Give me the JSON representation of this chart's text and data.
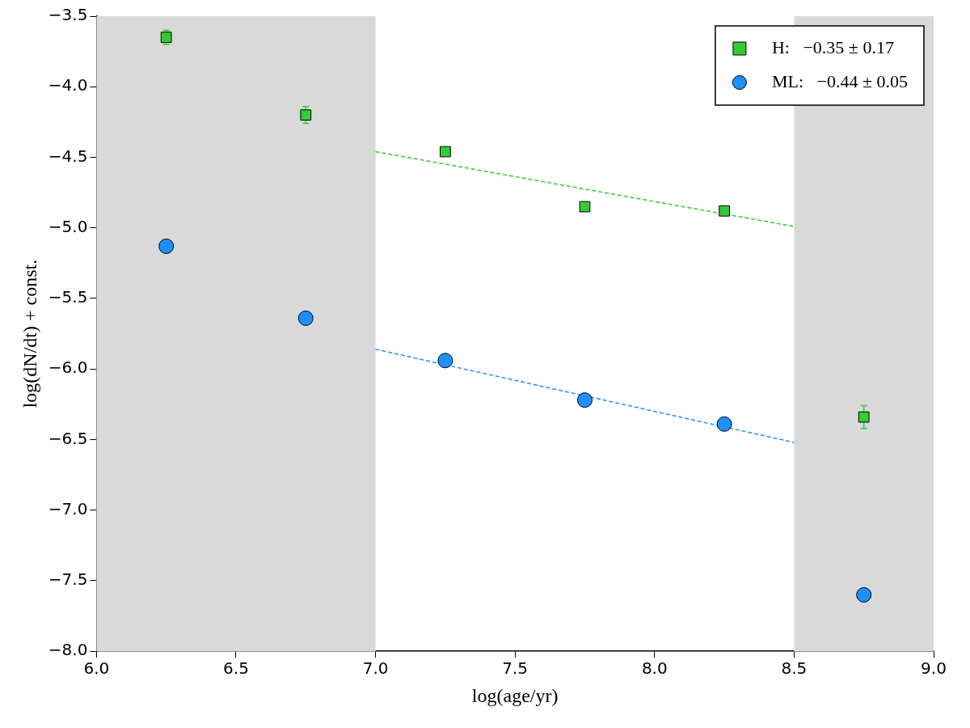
{
  "chart_data": {
    "type": "scatter",
    "xlabel": "log(age/yr)",
    "ylabel": "log(dN/dt) + const.",
    "xlim": [
      6.0,
      9.0
    ],
    "xticks": [
      {
        "value": 6,
        "label": "6.0"
      },
      {
        "value": 6.5,
        "label": "6.5"
      },
      {
        "value": 7,
        "label": "7.0"
      },
      {
        "value": 7.5,
        "label": "7.5"
      },
      {
        "value": 8,
        "label": "8.0"
      },
      {
        "value": 8.5,
        "label": "8.5"
      },
      {
        "value": 9,
        "label": "9.0"
      }
    ],
    "ylim": [
      -8.0,
      -3.5
    ],
    "yticks": [
      {
        "value": -8,
        "label": "−8.0"
      },
      {
        "value": -7.5,
        "label": "−7.5"
      },
      {
        "value": -7,
        "label": "−7.0"
      },
      {
        "value": -6.5,
        "label": "−6.5"
      },
      {
        "value": -6,
        "label": "−6.0"
      },
      {
        "value": -5.5,
        "label": "−5.5"
      },
      {
        "value": -5,
        "label": "−5.0"
      },
      {
        "value": -4.5,
        "label": "−4.5"
      },
      {
        "value": -4,
        "label": "−4.0"
      },
      {
        "value": -3.5,
        "label": "−3.5"
      }
    ],
    "grid": false,
    "legend": "top right",
    "bands": [
      {
        "axis": "x",
        "from": 6.0,
        "to": 7.0,
        "color": "#d9d9d9"
      },
      {
        "axis": "x",
        "from": 8.5,
        "to": 9.0,
        "color": "#d9d9d9"
      }
    ],
    "series": [
      {
        "name": "H:   −0.35 ± 0.17",
        "marker": "square",
        "color": "#33cc33",
        "x": [
          6.25,
          6.75,
          7.25,
          7.75,
          8.25,
          8.75
        ],
        "values": [
          -3.65,
          -4.2,
          -4.46,
          -4.85,
          -4.88,
          -6.34
        ],
        "errors": [
          0.05,
          0.06,
          null,
          null,
          null,
          0.08
        ]
      },
      {
        "name": "ML:   −0.44 ± 0.05",
        "marker": "circle",
        "color": "#1e90ff",
        "x": [
          6.25,
          6.75,
          7.25,
          7.75,
          8.25,
          8.75
        ],
        "values": [
          -5.13,
          -5.64,
          -5.94,
          -6.22,
          -6.39,
          -7.6
        ]
      },
      {
        "type": "line",
        "line_style": "dashed",
        "marker": "none",
        "color": "#33cc33",
        "x": [
          7.0,
          8.5
        ],
        "values": [
          -4.46,
          -4.99
        ]
      },
      {
        "type": "line",
        "line_style": "dashed",
        "marker": "none",
        "color": "#1e90ff",
        "x": [
          7.0,
          8.5
        ],
        "values": [
          -5.86,
          -6.52
        ]
      }
    ]
  }
}
